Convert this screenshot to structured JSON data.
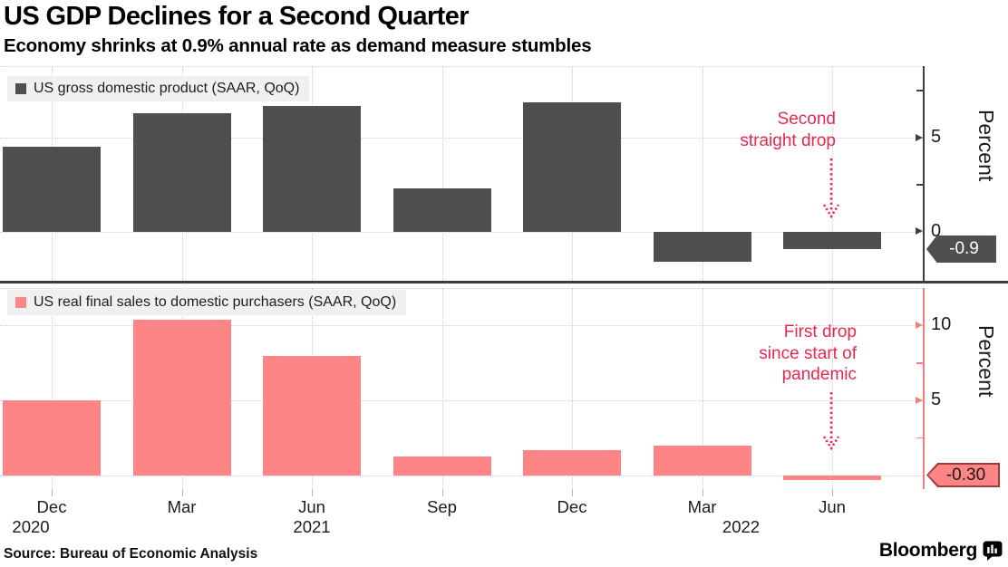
{
  "header": {
    "title": "US GDP Declines for a Second Quarter",
    "subtitle": "Economy shrinks at 0.9% annual rate as demand measure stumbles"
  },
  "footer": {
    "source": "Source: Bureau of Economic Analysis",
    "brand": "Bloomberg"
  },
  "x_axis": {
    "tick_labels": [
      "Dec",
      "Mar",
      "Jun",
      "Sep",
      "Dec",
      "Mar",
      "Jun"
    ],
    "year_labels": [
      {
        "text": "2020",
        "tick_index": 0
      },
      {
        "text": "2021",
        "tick_index": 2
      },
      {
        "text": "2022",
        "tick_index": 5
      }
    ]
  },
  "chart_data": [
    {
      "type": "bar",
      "panel": "top",
      "legend": "US gross domestic product (SAAR, QoQ)",
      "bar_color": "#504e4f",
      "categories": [
        "Dec 2020",
        "Mar 2021",
        "Jun 2021",
        "Sep 2021",
        "Dec 2021",
        "Mar 2022",
        "Jun 2022"
      ],
      "values": [
        4.5,
        6.3,
        6.7,
        2.3,
        6.9,
        -1.6,
        -0.9
      ],
      "ylabel": "Percent",
      "ylim": [
        -2.6,
        8.8
      ],
      "yticks": [
        {
          "value": 0,
          "label": "0"
        },
        {
          "value": 2.5
        },
        {
          "value": 5,
          "label": "5"
        },
        {
          "value": 7.5
        }
      ],
      "gridlines_y": [
        0,
        5
      ],
      "grid": true,
      "axis_color": "#3f3f3f",
      "annotation": {
        "lines": [
          "Second",
          "straight drop"
        ],
        "color": "#e5294f"
      },
      "end_value_label": "-0.9",
      "end_badge_style": "dark"
    },
    {
      "type": "bar",
      "panel": "bottom",
      "legend": "US real final sales to domestic purchasers (SAAR, QoQ)",
      "bar_color": "#fd8585",
      "categories": [
        "Dec 2020",
        "Mar 2021",
        "Jun 2021",
        "Sep 2021",
        "Dec 2021",
        "Mar 2022",
        "Jun 2022"
      ],
      "values": [
        5.0,
        10.4,
        8.0,
        1.3,
        1.7,
        2.0,
        -0.3
      ],
      "ylabel": "Percent",
      "ylim": [
        -0.9,
        12.5
      ],
      "yticks": [
        {
          "value": 2.5
        },
        {
          "value": 5,
          "label": "5"
        },
        {
          "value": 7.5
        },
        {
          "value": 10,
          "label": "10"
        }
      ],
      "gridlines_y": [
        0,
        5,
        10
      ],
      "grid": true,
      "axis_color": "#f47e7e",
      "annotation": {
        "lines": [
          "First drop",
          "since start of",
          "pandemic"
        ],
        "color": "#e5294f"
      },
      "end_value_label": "-0.30",
      "end_badge_style": "pink"
    }
  ]
}
